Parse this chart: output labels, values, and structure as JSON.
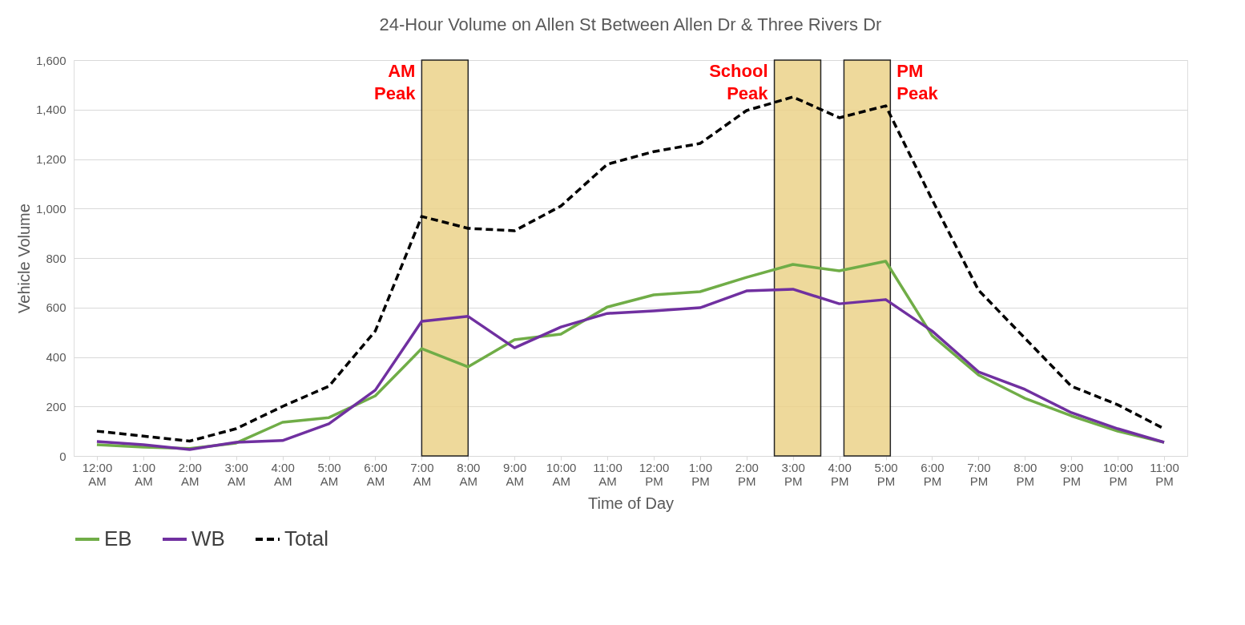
{
  "chart_data": {
    "type": "line",
    "title": "24-Hour Volume on Allen St Between Allen Dr & Three Rivers Dr",
    "xlabel": "Time of Day",
    "ylabel": "Vehicle Volume",
    "x": [
      0,
      1,
      2,
      3,
      4,
      5,
      6,
      7,
      8,
      9,
      10,
      11,
      12,
      13,
      14,
      15,
      16,
      17,
      18,
      19,
      20,
      21,
      22,
      23
    ],
    "xlim": [
      -0.5,
      23.5
    ],
    "xticks": [
      {
        "value": 0,
        "label": "12:00 AM"
      },
      {
        "value": 1,
        "label": "1:00 AM"
      },
      {
        "value": 2,
        "label": "2:00 AM"
      },
      {
        "value": 3,
        "label": "3:00 AM"
      },
      {
        "value": 4,
        "label": "4:00 AM"
      },
      {
        "value": 5,
        "label": "5:00 AM"
      },
      {
        "value": 6,
        "label": "6:00 AM"
      },
      {
        "value": 7,
        "label": "7:00 AM"
      },
      {
        "value": 8,
        "label": "8:00 AM"
      },
      {
        "value": 9,
        "label": "9:00 AM"
      },
      {
        "value": 10,
        "label": "10:00 AM"
      },
      {
        "value": 11,
        "label": "11:00 AM"
      },
      {
        "value": 12,
        "label": "12:00 PM"
      },
      {
        "value": 13,
        "label": "1:00 PM"
      },
      {
        "value": 14,
        "label": "2:00 PM"
      },
      {
        "value": 15,
        "label": "3:00 PM"
      },
      {
        "value": 16,
        "label": "4:00 PM"
      },
      {
        "value": 17,
        "label": "5:00 PM"
      },
      {
        "value": 18,
        "label": "6:00 PM"
      },
      {
        "value": 19,
        "label": "7:00 PM"
      },
      {
        "value": 20,
        "label": "8:00 PM"
      },
      {
        "value": 21,
        "label": "9:00 PM"
      },
      {
        "value": 22,
        "label": "10:00 PM"
      },
      {
        "value": 23,
        "label": "11:00 PM"
      }
    ],
    "ylim": [
      0,
      1600
    ],
    "yticks": [
      {
        "value": 0,
        "label": "0"
      },
      {
        "value": 200,
        "label": "200"
      },
      {
        "value": 400,
        "label": "400"
      },
      {
        "value": 600,
        "label": "600"
      },
      {
        "value": 800,
        "label": "800"
      },
      {
        "value": 1000,
        "label": "1,000"
      },
      {
        "value": 1200,
        "label": "1,200"
      },
      {
        "value": 1400,
        "label": "1,400"
      },
      {
        "value": 1600,
        "label": "1,600"
      }
    ],
    "grid": "y",
    "legend": "bottom",
    "series": [
      {
        "name": "EB",
        "color": "#70ad47",
        "line_style": "solid",
        "values": [
          45,
          36,
          30,
          52,
          136,
          155,
          243,
          434,
          360,
          470,
          492,
          602,
          651,
          664,
          722,
          774,
          748,
          787,
          486,
          327,
          233,
          162,
          100,
          55
        ]
      },
      {
        "name": "WB",
        "color": "#7030a0",
        "line_style": "solid",
        "values": [
          58,
          45,
          26,
          55,
          62,
          130,
          266,
          544,
          564,
          437,
          521,
          576,
          586,
          599,
          667,
          674,
          615,
          632,
          505,
          340,
          269,
          175,
          110,
          55
        ]
      },
      {
        "name": "Total",
        "color": "#000000",
        "line_style": "dashed",
        "values": [
          100,
          80,
          60,
          110,
          200,
          282,
          505,
          968,
          920,
          910,
          1010,
          1179,
          1230,
          1263,
          1396,
          1451,
          1367,
          1415,
          1036,
          670,
          476,
          282,
          207,
          110
        ]
      }
    ],
    "bands": [
      {
        "axis": "x",
        "from": 7,
        "to": 8,
        "label": "AM Peak",
        "color": "#ecd38a"
      },
      {
        "axis": "x",
        "from": 14.6,
        "to": 15.6,
        "label": "School Peak",
        "color": "#ecd38a"
      },
      {
        "axis": "x",
        "from": 16.1,
        "to": 17.1,
        "label": "PM Peak",
        "color": "#ecd38a"
      }
    ]
  }
}
